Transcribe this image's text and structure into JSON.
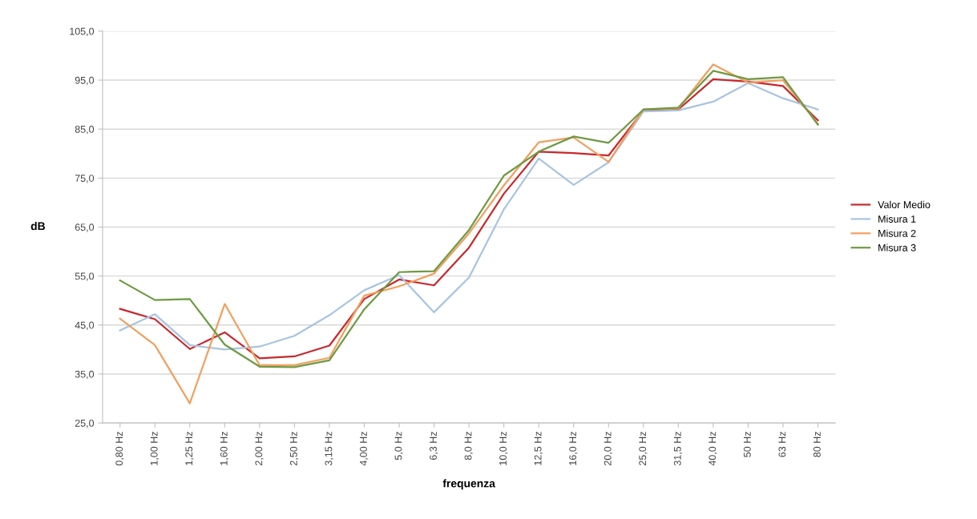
{
  "chart_data": {
    "type": "line",
    "xlabel": "frequenza",
    "ylabel": "dB",
    "categories": [
      "0,80 Hz",
      "1,00 Hz",
      "1,25 Hz",
      "1,60 Hz",
      "2,00 Hz",
      "2,50 Hz",
      "3,15 Hz",
      "4,00 Hz",
      "5,0 Hz",
      "6,3 Hz",
      "8,0 Hz",
      "10,0 Hz",
      "12,5 Hz",
      "16,0 Hz",
      "20,0 Hz",
      "25,0 Hz",
      "31,5 Hz",
      "40,0 Hz",
      "50 Hz",
      "63 Hz",
      "80 Hz"
    ],
    "series": [
      {
        "name": "Valor Medio",
        "color": "#c8282d",
        "values": [
          48.3,
          46.2,
          40.1,
          43.5,
          38.2,
          38.6,
          40.8,
          50.3,
          54.3,
          53.1,
          60.8,
          71.8,
          80.4,
          80.1,
          79.6,
          88.8,
          89.0,
          95.2,
          94.7,
          93.8,
          86.8
        ]
      },
      {
        "name": "Misura 1",
        "color": "#a9c4e0",
        "values": [
          43.9,
          47.2,
          40.9,
          40.0,
          40.6,
          42.8,
          47.0,
          52.1,
          55.2,
          47.6,
          54.7,
          68.6,
          79.0,
          73.6,
          78.2,
          88.6,
          88.8,
          90.6,
          94.4,
          91.3,
          89.0
        ]
      },
      {
        "name": "Misura 2",
        "color": "#f0a060",
        "values": [
          46.3,
          40.9,
          29.0,
          49.3,
          36.8,
          36.8,
          38.3,
          51.0,
          52.9,
          55.5,
          63.7,
          73.5,
          82.3,
          83.3,
          78.3,
          89.0,
          89.2,
          98.2,
          94.5,
          95.0,
          86.1
        ]
      },
      {
        "name": "Misura 3",
        "color": "#6e9a44",
        "values": [
          54.1,
          50.1,
          50.3,
          41.0,
          36.5,
          36.4,
          37.8,
          48.2,
          55.8,
          56.0,
          64.4,
          75.5,
          80.4,
          83.5,
          82.2,
          89.0,
          89.4,
          96.9,
          95.2,
          95.6,
          85.9
        ]
      }
    ],
    "ylim": [
      25,
      105
    ],
    "yticks": [
      {
        "value": 25,
        "label": "25,0"
      },
      {
        "value": 35,
        "label": "35,0"
      },
      {
        "value": 45,
        "label": "45,0"
      },
      {
        "value": 55,
        "label": "55,0"
      },
      {
        "value": 65,
        "label": "65,0"
      },
      {
        "value": 75,
        "label": "75,0"
      },
      {
        "value": 85,
        "label": "85,0"
      },
      {
        "value": 95,
        "label": "95,0"
      },
      {
        "value": 105,
        "label": "105,0"
      }
    ],
    "grid": "y",
    "legend": "right",
    "marker": "none",
    "line_style": "solid"
  }
}
